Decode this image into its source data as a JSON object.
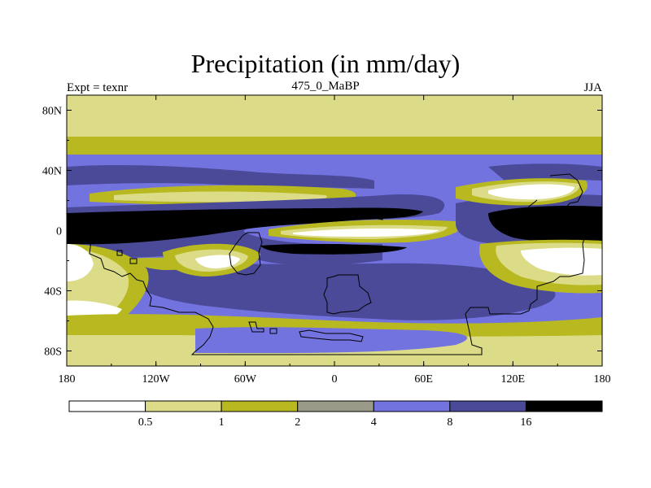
{
  "chart_data": {
    "type": "heatmap",
    "title": "Precipitation (in mm/day)",
    "subtitle_left": "Expt = texnr",
    "subtitle_center": "475_0_MaBP",
    "subtitle_right": "JJA",
    "x_ticks": [
      "180",
      "120W",
      "60W",
      "0",
      "60E",
      "120E",
      "180"
    ],
    "x_tick_values": [
      -180,
      -120,
      -60,
      0,
      60,
      120,
      180
    ],
    "y_ticks": [
      "80N",
      "40N",
      "0",
      "40S",
      "80S"
    ],
    "y_tick_values": [
      80,
      40,
      0,
      -40,
      -80
    ],
    "xlim": [
      -180,
      180
    ],
    "ylim": [
      -90,
      90
    ],
    "colorbar": {
      "levels": [
        "0.5",
        "1",
        "2",
        "4",
        "8",
        "16"
      ],
      "colors": [
        "#ffffff",
        "#dcdc88",
        "#b8b820",
        "#9a9a88",
        "#7373e0",
        "#4a4a98",
        "#000000"
      ]
    }
  }
}
